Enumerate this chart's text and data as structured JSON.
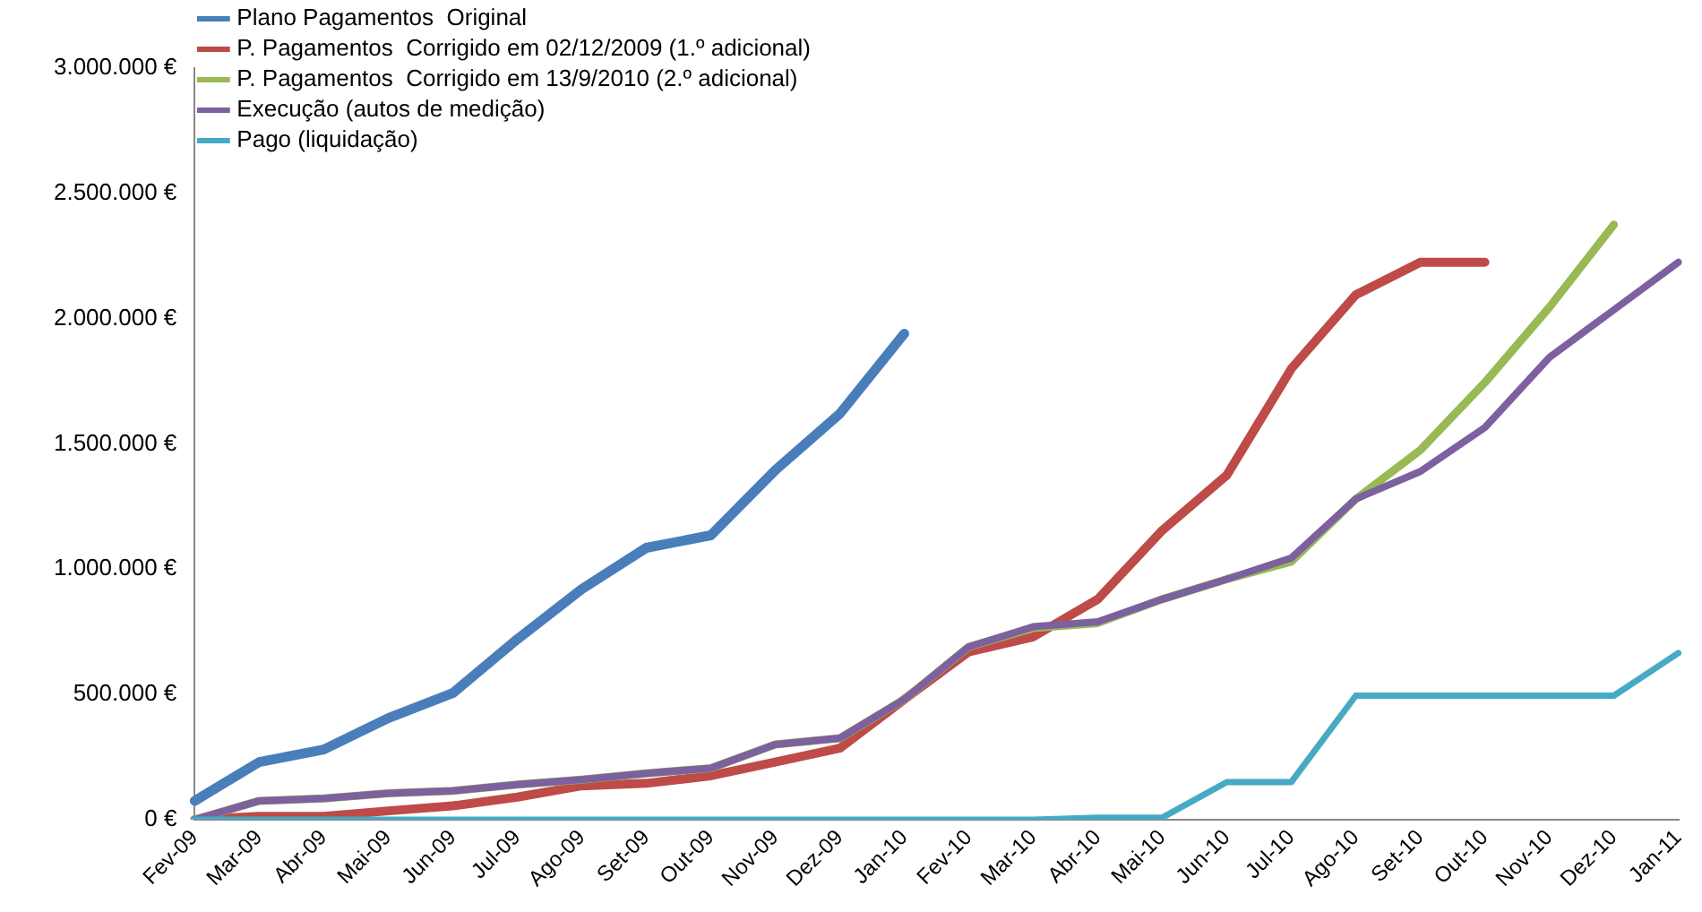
{
  "chart_data": {
    "type": "line",
    "categories": [
      "Fev-09",
      "Mar-09",
      "Abr-09",
      "Mai-09",
      "Jun-09",
      "Jul-09",
      "Ago-09",
      "Set-09",
      "Out-09",
      "Nov-09",
      "Dez-09",
      "Jan-10",
      "Fev-10",
      "Mar-10",
      "Abr-10",
      "Mai-10",
      "Jun-10",
      "Jul-10",
      "Ago-10",
      "Set-10",
      "Out-10",
      "Nov-10",
      "Dez-10",
      "Jan-11"
    ],
    "series": [
      {
        "name": "Plano Pagamentos  Original",
        "color": "#4a7ebb",
        "values": [
          75000,
          230000,
          280000,
          405000,
          505000,
          720000,
          920000,
          1085000,
          1135000,
          1395000,
          1620000,
          1940000,
          null,
          null,
          null,
          null,
          null,
          null,
          null,
          null,
          null,
          null,
          null,
          null
        ]
      },
      {
        "name": "P. Pagamentos  Corrigido em 02/12/2009 (1.º adicional)",
        "color": "#be4b48",
        "values": [
          0,
          13000,
          13000,
          35000,
          55000,
          90000,
          135000,
          145000,
          175000,
          230000,
          285000,
          480000,
          670000,
          730000,
          880000,
          1155000,
          1375000,
          1800000,
          2095000,
          2225000,
          2225000,
          null,
          null,
          null
        ]
      },
      {
        "name": "P. Pagamentos  Corrigido em 13/9/2010 (2.º adicional)",
        "color": "#98b954",
        "values": [
          0,
          75000,
          85000,
          105000,
          115000,
          140000,
          160000,
          185000,
          205000,
          300000,
          325000,
          480000,
          690000,
          765000,
          785000,
          880000,
          960000,
          1030000,
          1280000,
          1475000,
          1745000,
          2045000,
          2375000,
          null
        ]
      },
      {
        "name": "Execução (autos de medição)",
        "color": "#7d60a0",
        "values": [
          0,
          75000,
          85000,
          105000,
          115000,
          140000,
          160000,
          185000,
          205000,
          300000,
          325000,
          480000,
          690000,
          770000,
          790000,
          880000,
          960000,
          1045000,
          1280000,
          1390000,
          1565000,
          1845000,
          2035000,
          2225000
        ]
      },
      {
        "name": "Pago (liquidação)",
        "color": "#46aac5",
        "values": [
          0,
          0,
          0,
          0,
          0,
          0,
          0,
          0,
          0,
          0,
          0,
          0,
          0,
          0,
          8000,
          8000,
          150000,
          150000,
          495000,
          495000,
          495000,
          495000,
          495000,
          665000
        ]
      }
    ],
    "ylim": [
      0,
      3000000
    ],
    "yticks": [
      {
        "value": 0,
        "label": "0 €"
      },
      {
        "value": 500000,
        "label": "500.000 €"
      },
      {
        "value": 1000000,
        "label": "1.000.000 €"
      },
      {
        "value": 1500000,
        "label": "1.500.000 €"
      },
      {
        "value": 2000000,
        "label": "2.000.000 €"
      },
      {
        "value": 2500000,
        "label": "2.500.000 €"
      },
      {
        "value": 3000000,
        "label": "3.000.000 €"
      }
    ],
    "grid": false,
    "legend": "top left",
    "marker": "none",
    "line_style": "solid"
  }
}
